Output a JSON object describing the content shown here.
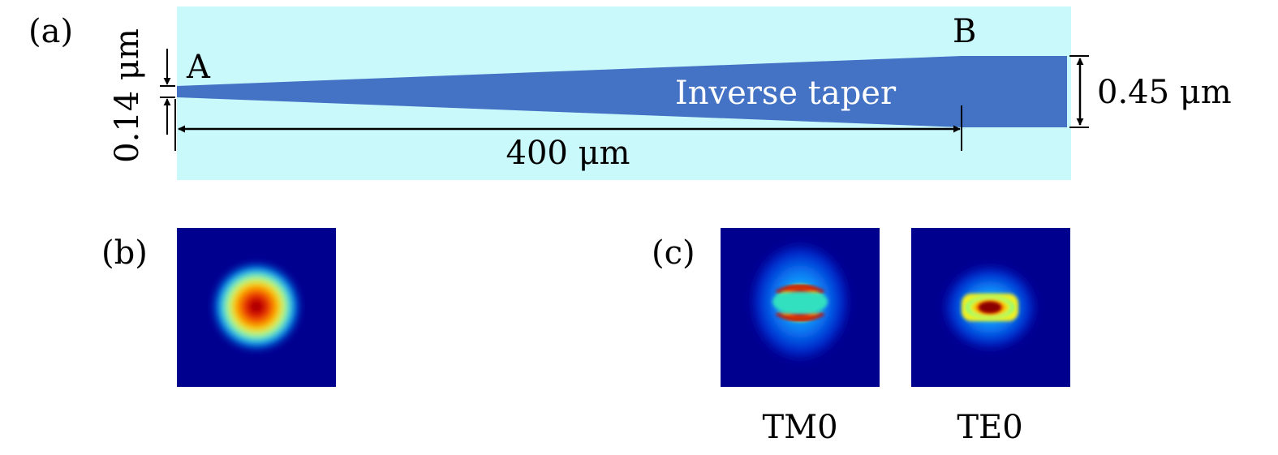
{
  "colors": {
    "cladding": "#c9f9fb",
    "core": "#4472c4",
    "mode_background": "#00008f",
    "arrow": "#000000",
    "taper_text": "#ffffff"
  },
  "panel_a": {
    "label": "(a)",
    "point_a": "A",
    "point_b": "B",
    "taper_label": "Inverse taper",
    "tip_width": "0.14 μm",
    "end_width": "0.45 μm",
    "length": "400 μm"
  },
  "panel_b": {
    "label": "(b)",
    "mode_icon": "fiber-mode-circular-icon"
  },
  "panel_c": {
    "label": "(c)",
    "modes": [
      {
        "name": "TM0",
        "icon": "tm0-mode-profile-icon"
      },
      {
        "name": "TE0",
        "icon": "te0-mode-profile-icon"
      }
    ]
  }
}
